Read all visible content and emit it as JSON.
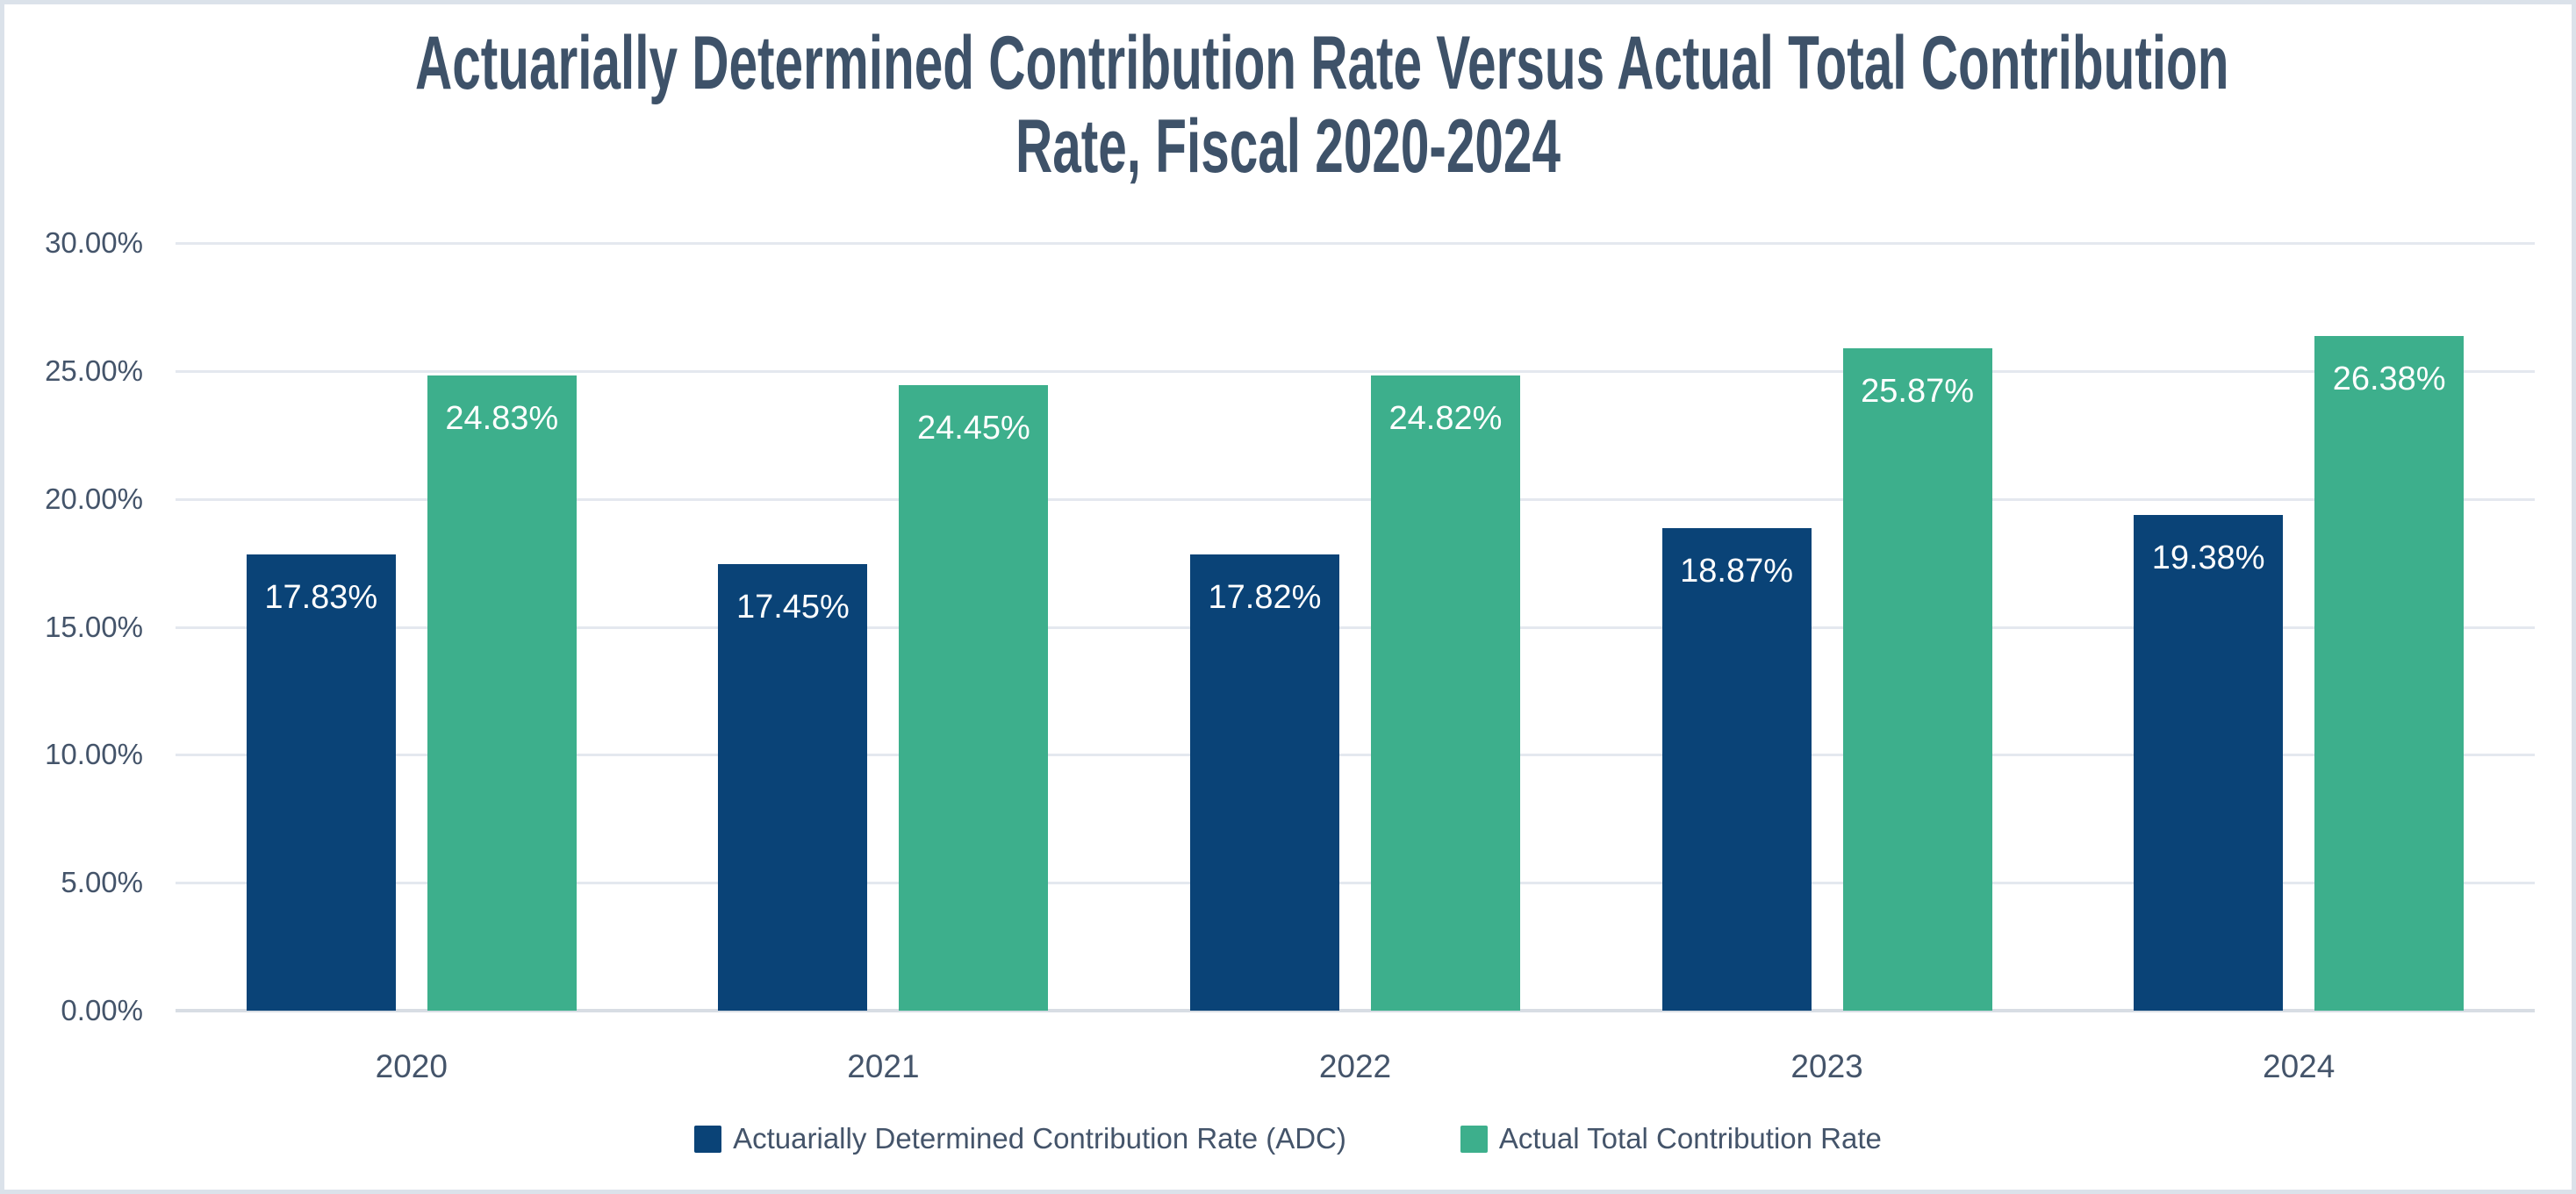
{
  "chart_data": {
    "type": "bar",
    "title": "Actuarially Determined Contribution Rate Versus Actual Total Contribution Rate, Fiscal 2020-2024",
    "title_lines": [
      "Actuarially Determined Contribution Rate Versus Actual Total Contribution",
      "Rate, Fiscal 2020-2024"
    ],
    "categories": [
      "2020",
      "2021",
      "2022",
      "2023",
      "2024"
    ],
    "series": [
      {
        "name": "Actuarially Determined Contribution Rate (ADC)",
        "color": "#0A4377",
        "values": [
          17.83,
          17.45,
          17.82,
          18.87,
          19.38
        ],
        "labels": [
          "17.83%",
          "17.45%",
          "17.82%",
          "18.87%",
          "19.38%"
        ]
      },
      {
        "name": "Actual Total Contribution Rate",
        "color": "#3DAF8C",
        "values": [
          24.83,
          24.45,
          24.82,
          25.87,
          26.38
        ],
        "labels": [
          "24.83%",
          "24.45%",
          "24.82%",
          "25.87%",
          "26.38%"
        ]
      }
    ],
    "y_axis": {
      "ticks": [
        "30.00%",
        "25.00%",
        "20.00%",
        "15.00%",
        "10.00%",
        "5.00%",
        "0.00%"
      ],
      "min": 0,
      "max": 30,
      "step": 5,
      "format": "percent"
    },
    "xlabel": "",
    "ylabel": "",
    "ylim": [
      0,
      30
    ],
    "grid": true,
    "legend_position": "bottom"
  },
  "colors": {
    "bar_adc": "#0A4377",
    "bar_actual": "#3DAF8C",
    "title_text": "#3E5269",
    "axis_text": "#44546A",
    "gridline": "#E4E8EF",
    "axis_line": "#D8DDE4",
    "frame_border": "#DBE2EA",
    "background": "#FFFFFF",
    "data_label_text": "#FFFFFF"
  }
}
